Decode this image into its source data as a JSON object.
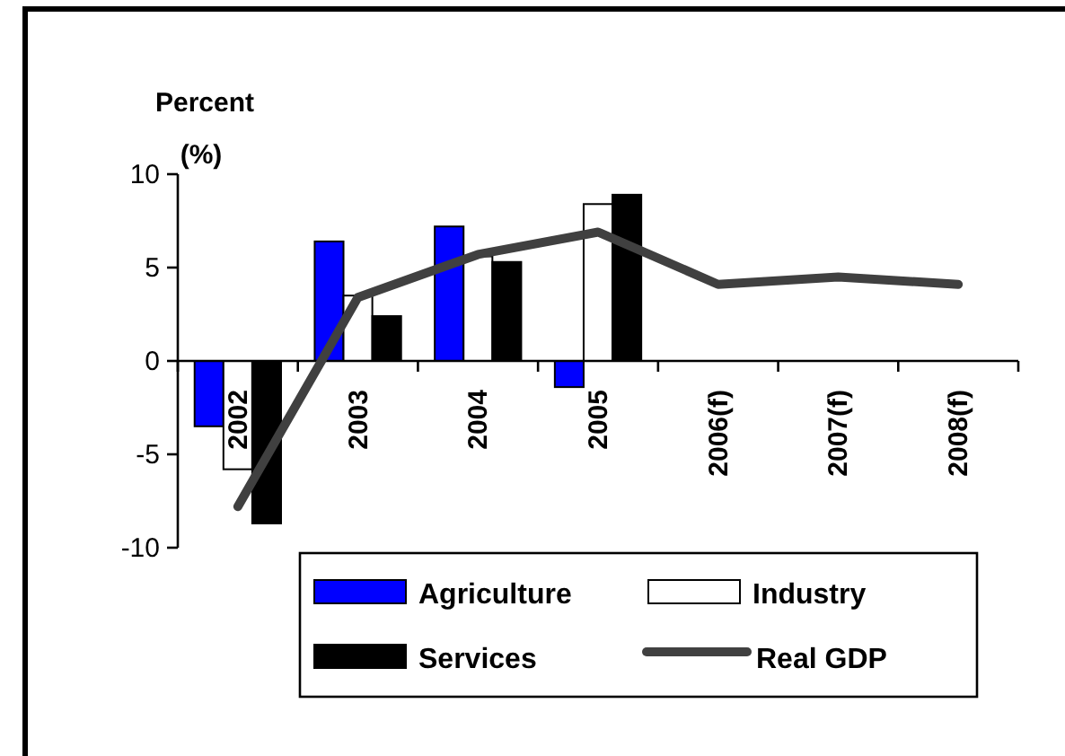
{
  "chart_data": {
    "type": "bar",
    "ylabel": "Percent (%)",
    "categories": [
      "2002",
      "2003",
      "2004",
      "2005",
      "2006(f)",
      "2007(f)",
      "2008(f)"
    ],
    "series": [
      {
        "name": "Agriculture",
        "color": "#0000ff",
        "values": [
          -3.5,
          6.4,
          7.2,
          -1.4,
          null,
          null,
          null
        ]
      },
      {
        "name": "Industry",
        "color": "#ffffff",
        "values": [
          -5.8,
          3.5,
          5.6,
          8.4,
          null,
          null,
          null
        ]
      },
      {
        "name": "Services",
        "color": "#000000",
        "values": [
          -8.7,
          2.4,
          5.3,
          8.9,
          null,
          null,
          null
        ]
      },
      {
        "name": "Real GDP",
        "type": "line",
        "color": "#404040",
        "values": [
          -7.8,
          3.4,
          5.7,
          6.9,
          4.1,
          4.5,
          4.1
        ]
      }
    ],
    "ylim": [
      -10,
      10
    ],
    "yticks": [
      -10,
      -5,
      0,
      5,
      10
    ],
    "legend": "bottom"
  }
}
